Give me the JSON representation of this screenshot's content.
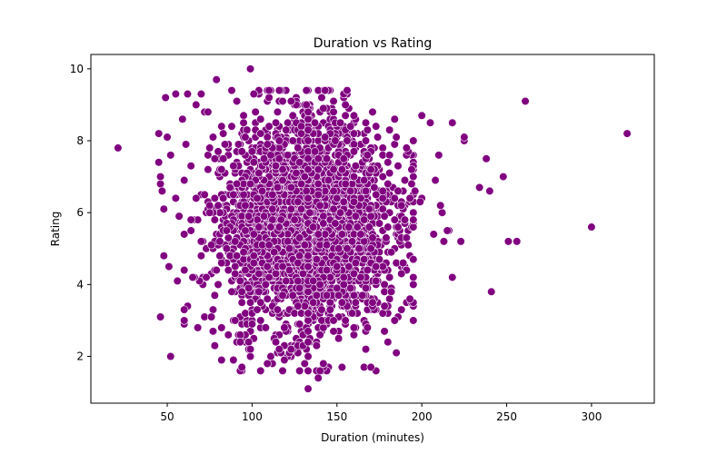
{
  "chart_data": {
    "type": "scatter",
    "title": "Duration vs Rating",
    "xlabel": "Duration (minutes)",
    "ylabel": "Rating",
    "xlim": [
      5,
      337
    ],
    "ylim": [
      0.7,
      10.4
    ],
    "xticks": [
      50,
      100,
      150,
      200,
      250,
      300
    ],
    "yticks": [
      2,
      4,
      6,
      8,
      10
    ],
    "grid": false,
    "marker_color": "#800080",
    "marker_edge_color": "#ffffff",
    "generated_bulk": {
      "count": 3200,
      "x_mean": 132,
      "x_sd": 26,
      "x_range": [
        60,
        195
      ],
      "y_mean": 5.7,
      "y_sd": 1.45,
      "y_range": [
        1.6,
        9.4
      ]
    },
    "points": [
      {
        "x": 21,
        "y": 7.8
      },
      {
        "x": 321,
        "y": 8.2
      },
      {
        "x": 261,
        "y": 9.1
      },
      {
        "x": 300,
        "y": 5.6
      },
      {
        "x": 256,
        "y": 5.2
      },
      {
        "x": 251,
        "y": 5.2
      },
      {
        "x": 248,
        "y": 7.0
      },
      {
        "x": 241,
        "y": 3.8
      },
      {
        "x": 240,
        "y": 6.6
      },
      {
        "x": 238,
        "y": 7.5
      },
      {
        "x": 234,
        "y": 6.7
      },
      {
        "x": 225,
        "y": 8.0
      },
      {
        "x": 225,
        "y": 8.1
      },
      {
        "x": 223,
        "y": 5.2
      },
      {
        "x": 218,
        "y": 8.5
      },
      {
        "x": 218,
        "y": 4.2
      },
      {
        "x": 216,
        "y": 5.5
      },
      {
        "x": 215,
        "y": 5.5
      },
      {
        "x": 213,
        "y": 5.2
      },
      {
        "x": 212,
        "y": 6.0
      },
      {
        "x": 211,
        "y": 6.2
      },
      {
        "x": 210,
        "y": 7.6
      },
      {
        "x": 208,
        "y": 6.9
      },
      {
        "x": 207,
        "y": 5.4
      },
      {
        "x": 205,
        "y": 8.5
      },
      {
        "x": 200,
        "y": 8.7
      },
      {
        "x": 200,
        "y": 6.4
      },
      {
        "x": 199,
        "y": 6.3
      },
      {
        "x": 195,
        "y": 4.0
      },
      {
        "x": 193,
        "y": 3.6
      },
      {
        "x": 99,
        "y": 10.0
      },
      {
        "x": 79,
        "y": 9.7
      },
      {
        "x": 133,
        "y": 1.1
      },
      {
        "x": 139,
        "y": 1.4
      },
      {
        "x": 133,
        "y": 1.6
      },
      {
        "x": 118,
        "y": 1.6
      },
      {
        "x": 112,
        "y": 1.8
      },
      {
        "x": 109,
        "y": 1.8
      },
      {
        "x": 153,
        "y": 1.7
      },
      {
        "x": 166,
        "y": 1.7
      },
      {
        "x": 170,
        "y": 1.7
      },
      {
        "x": 52,
        "y": 2.0
      },
      {
        "x": 82,
        "y": 1.9
      },
      {
        "x": 89,
        "y": 1.9
      },
      {
        "x": 46,
        "y": 3.1
      },
      {
        "x": 48,
        "y": 4.8
      },
      {
        "x": 49,
        "y": 9.2
      },
      {
        "x": 55,
        "y": 9.3
      },
      {
        "x": 62,
        "y": 9.3
      },
      {
        "x": 67,
        "y": 9.0
      },
      {
        "x": 45,
        "y": 8.2
      },
      {
        "x": 46,
        "y": 6.8
      },
      {
        "x": 47,
        "y": 6.6
      },
      {
        "x": 48,
        "y": 6.1
      },
      {
        "x": 51,
        "y": 4.5
      },
      {
        "x": 56,
        "y": 4.1
      },
      {
        "x": 60,
        "y": 3.3
      },
      {
        "x": 66,
        "y": 4.2
      },
      {
        "x": 68,
        "y": 2.8
      },
      {
        "x": 72,
        "y": 3.1
      },
      {
        "x": 76,
        "y": 3.1
      },
      {
        "x": 78,
        "y": 2.3
      },
      {
        "x": 86,
        "y": 2.6
      },
      {
        "x": 45,
        "y": 7.4
      },
      {
        "x": 46,
        "y": 7.0
      },
      {
        "x": 50,
        "y": 8.1
      },
      {
        "x": 52,
        "y": 7.6
      },
      {
        "x": 55,
        "y": 6.4
      },
      {
        "x": 57,
        "y": 5.9
      },
      {
        "x": 59,
        "y": 8.6
      },
      {
        "x": 61,
        "y": 7.9
      },
      {
        "x": 64,
        "y": 5.5
      },
      {
        "x": 65,
        "y": 4.2
      },
      {
        "x": 70,
        "y": 9.3
      },
      {
        "x": 74,
        "y": 8.8
      },
      {
        "x": 185,
        "y": 2.1
      },
      {
        "x": 180,
        "y": 2.4
      },
      {
        "x": 184,
        "y": 3.0
      },
      {
        "x": 188,
        "y": 3.3
      },
      {
        "x": 178,
        "y": 3.4
      },
      {
        "x": 189,
        "y": 4.6
      },
      {
        "x": 191,
        "y": 7.8
      },
      {
        "x": 192,
        "y": 5.1
      },
      {
        "x": 190,
        "y": 5.8
      },
      {
        "x": 194,
        "y": 7.2
      },
      {
        "x": 196,
        "y": 6.6
      }
    ]
  }
}
